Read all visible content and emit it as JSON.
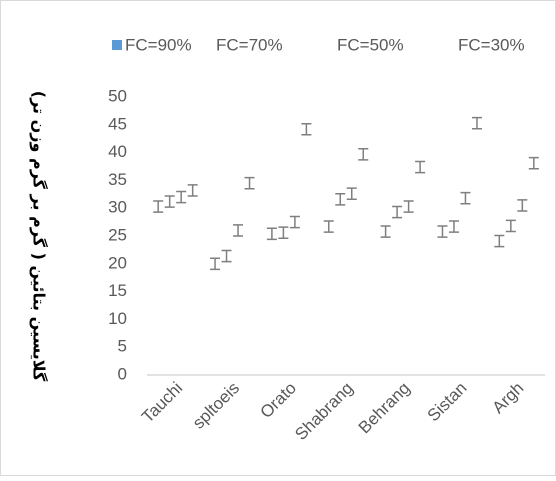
{
  "chart_data": {
    "type": "bar",
    "y_axis_title": "گلایسین بتائین ( گرم بر گرم وزن تر)",
    "categories": [
      "Tauchi",
      "spltoeis",
      "Orato",
      "Shabrang",
      "Behrang",
      "Sistan",
      "Argh"
    ],
    "series": [
      {
        "name": "FC=90%",
        "color": "#5b9bd5",
        "values": [
          30.3,
          20,
          25.4,
          26.7,
          25.8,
          25.8,
          24.1
        ],
        "errors": [
          1,
          1,
          1,
          1,
          1,
          1,
          1
        ]
      },
      {
        "name": "FC=70%",
        "color": "#ffffff",
        "values": [
          31.2,
          21.4,
          25.6,
          31.6,
          29.3,
          26.7,
          26.8
        ],
        "errors": [
          1,
          1,
          1,
          1,
          1,
          1,
          1
        ]
      },
      {
        "name": "FC=50%",
        "color": "#ffffff",
        "values": [
          32,
          26,
          27.5,
          32.6,
          30.3,
          31.8,
          30.5
        ],
        "errors": [
          1,
          1,
          1,
          1,
          1,
          1,
          1
        ]
      },
      {
        "name": "FC=30%",
        "color": "#ffffff",
        "values": [
          33.2,
          34.5,
          44.2,
          39.7,
          37.4,
          45.3,
          38.1
        ],
        "errors": [
          1,
          1,
          1,
          1,
          1,
          1,
          1
        ]
      }
    ],
    "bar_fill": "none",
    "error_bar_color": "#7f7f7f",
    "ylim": [
      0,
      50
    ],
    "yticks": [
      0,
      5,
      10,
      15,
      20,
      25,
      30,
      35,
      40,
      45,
      50
    ],
    "grid": false
  }
}
